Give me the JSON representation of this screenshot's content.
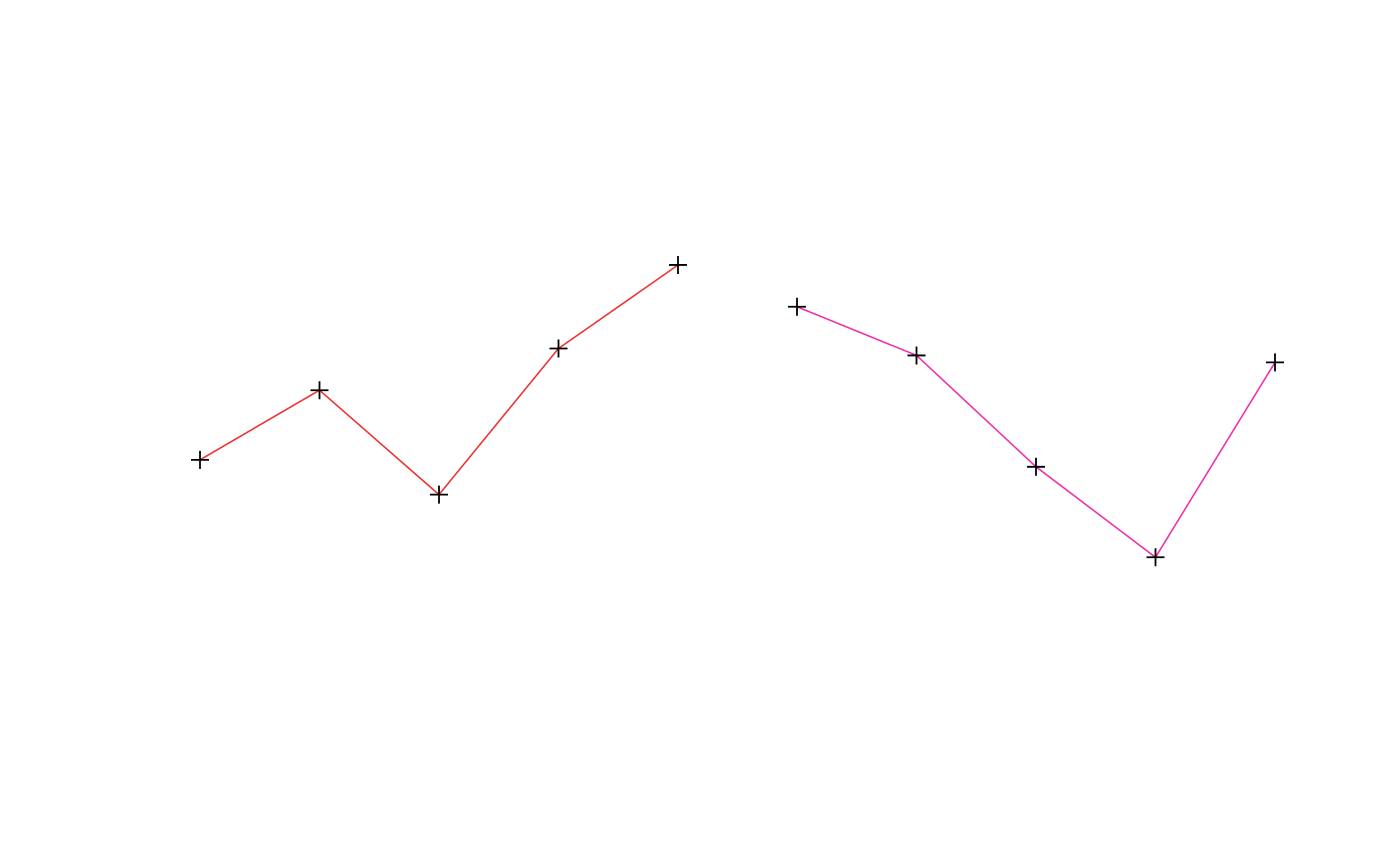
{
  "chart_data": {
    "type": "line",
    "x": [
      1,
      2,
      3,
      4,
      5
    ],
    "xlim": [
      1,
      5
    ],
    "ylim": [
      0,
      10
    ],
    "grid": false,
    "axes": false,
    "marker": "plus",
    "marker_color": "#000000",
    "series": [
      {
        "values": [
          4.6,
          5.6,
          4.1,
          6.2,
          7.4
        ],
        "color": "#ee3333"
      },
      {
        "values": [
          6.8,
          6.1,
          4.5,
          3.2,
          6.0
        ],
        "color": "#ee33aa"
      }
    ]
  }
}
